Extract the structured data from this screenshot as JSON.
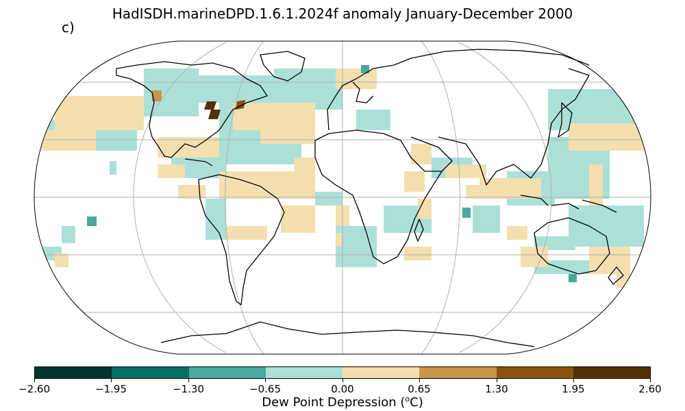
{
  "title": "HadISDH.marineDPD.1.6.1.2024f anomaly January-December 2000",
  "panel_label": "c)",
  "colorbar": {
    "label_pre": "Dew Point Depression (",
    "label_sup": "o",
    "label_post": "C)",
    "ticks": [
      "−2.60",
      "−1.95",
      "−1.30",
      "−0.65",
      "0.00",
      "0.65",
      "1.30",
      "1.95",
      "2.60"
    ],
    "colors": [
      "#01352f",
      "#046e63",
      "#4aa89c",
      "#abe0d8",
      "#f3dfb0",
      "#c8954a",
      "#8c520e",
      "#543005"
    ]
  },
  "colors": {
    "coast": "#000000",
    "graticule": "#b0b0b0",
    "outline": "#000000"
  }
}
